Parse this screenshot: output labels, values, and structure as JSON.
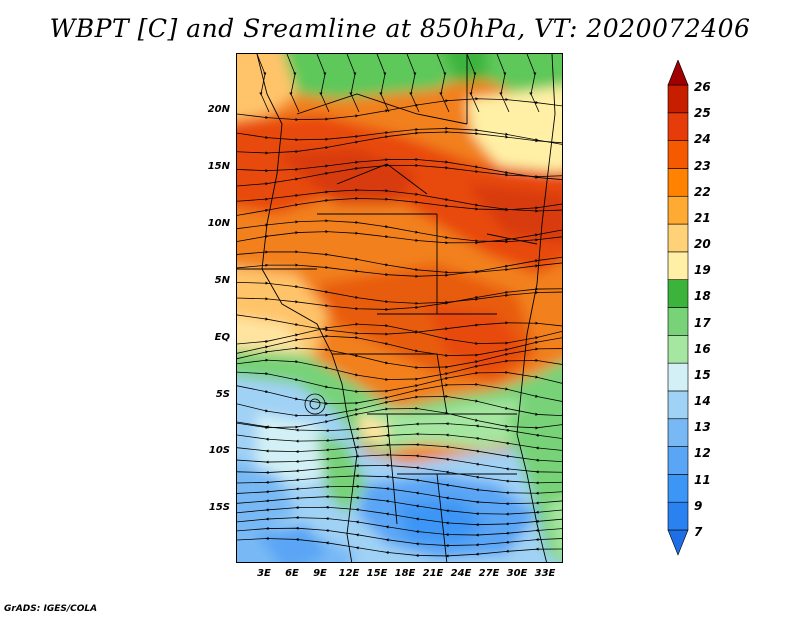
{
  "title": "WBPT [C] and Sreamline at 850hPa, VT: 2020072406",
  "credit": "GrADS: IGES/COLA",
  "lat_ticks": [
    "20N",
    "15N",
    "10N",
    "5N",
    "EQ",
    "5S",
    "10S",
    "15S"
  ],
  "lon_ticks": [
    "3E",
    "6E",
    "9E",
    "12E",
    "15E",
    "18E",
    "21E",
    "24E",
    "27E",
    "30E",
    "33E"
  ],
  "colorbar": {
    "labels": [
      "7",
      "9",
      "11",
      "12",
      "13",
      "14",
      "15",
      "16",
      "17",
      "18",
      "19",
      "20",
      "21",
      "22",
      "23",
      "24",
      "25",
      "26"
    ],
    "colors": [
      "#1e6ee6",
      "#2a82f0",
      "#3c96f5",
      "#5aa5f5",
      "#78b9f5",
      "#a0d2f5",
      "#d2f0f5",
      "#a5e6a0",
      "#78d278",
      "#3cb43c",
      "#fff0a5",
      "#ffd278",
      "#ffaa32",
      "#ff8200",
      "#f55a00",
      "#e63c0a",
      "#c81e00",
      "#a00000"
    ]
  }
}
